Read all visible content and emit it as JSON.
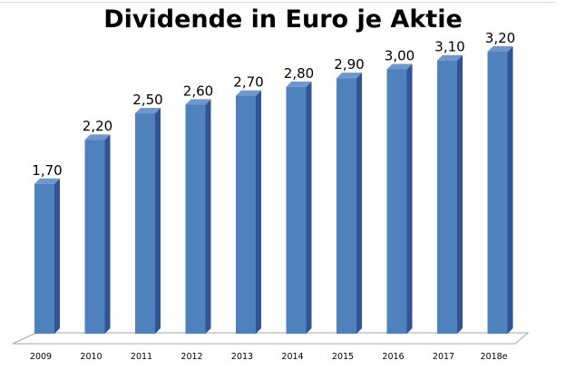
{
  "chart_data": {
    "type": "bar",
    "title": "Dividende in Euro je Aktie",
    "xlabel": "",
    "ylabel": "",
    "categories": [
      "2009",
      "2010",
      "2011",
      "2012",
      "2013",
      "2014",
      "2015",
      "2016",
      "2017",
      "2018e"
    ],
    "values": [
      1.7,
      2.2,
      2.5,
      2.6,
      2.7,
      2.8,
      2.9,
      3.0,
      3.1,
      3.2
    ],
    "data_labels": [
      "1,70",
      "2,20",
      "2,50",
      "2,60",
      "2,70",
      "2,80",
      "2,90",
      "3,00",
      "3,10",
      "3,20"
    ],
    "ylim": [
      0,
      3.2
    ],
    "grid": false,
    "legend": "none",
    "style": "3d-column",
    "colors": {
      "bar_front": "#4f81bd",
      "bar_side": "#2f5597",
      "bar_top": "#6f97cc",
      "floor": "#ffffff",
      "floor_edge": "#a6a6a6"
    }
  }
}
